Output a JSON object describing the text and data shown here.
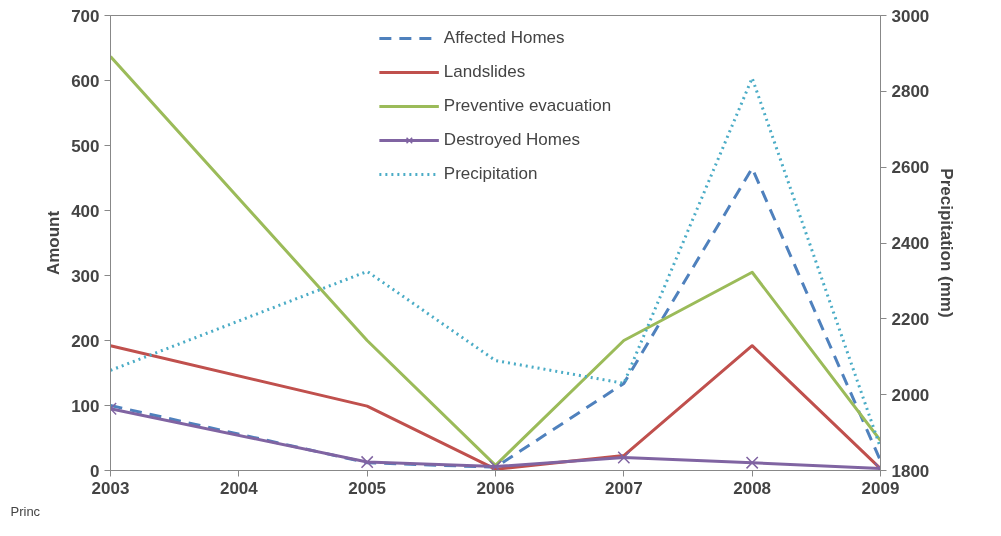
{
  "chart_data": {
    "type": "line",
    "ylabel": "Amount",
    "y2label": "Precipitation (mm)",
    "x": [
      2003,
      2005,
      2006,
      2007,
      2008,
      2009
    ],
    "xlim": [
      2003,
      2009
    ],
    "xticks": [
      2003,
      2004,
      2005,
      2006,
      2007,
      2008,
      2009
    ],
    "ylim": [
      0,
      700
    ],
    "yticks": [
      0,
      100,
      200,
      300,
      400,
      500,
      600,
      700
    ],
    "y2lim": [
      1800,
      3000
    ],
    "y2ticks": [
      1800,
      2000,
      2200,
      2400,
      2600,
      2800,
      3000
    ],
    "grid": false,
    "legend": "top",
    "annotations": [
      "Princ"
    ],
    "series": [
      {
        "name": "Affected Homes",
        "color": "#4f81bd",
        "line_style": "dashed",
        "values": [
          100,
          12,
          5,
          134,
          465,
          15
        ]
      },
      {
        "name": "Landslides",
        "color": "#c0504d",
        "line_style": "solid",
        "values": [
          192,
          99,
          2,
          23,
          192,
          3
        ]
      },
      {
        "name": "Preventive evacuation",
        "color": "#9bbb59",
        "line_style": "solid",
        "values": [
          637,
          200,
          8,
          200,
          305,
          46
        ]
      },
      {
        "name": "Destroyed Homes",
        "color": "#8064a2",
        "line_style": "solid",
        "marker": "cross",
        "values": [
          95,
          13,
          6,
          20,
          12,
          3
        ]
      },
      {
        "name": "Precipitation",
        "color": "#4bacc6",
        "line_style": "dotted",
        "axis": "y2",
        "values": [
          2064,
          2325,
          2090,
          2030,
          2835,
          1860
        ]
      }
    ]
  }
}
